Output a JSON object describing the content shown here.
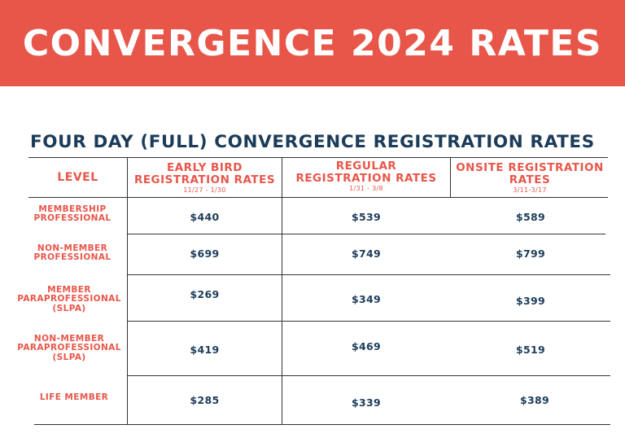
{
  "title": "CONVERGENCE 2024 RATES",
  "subtitle": "FOUR DAY (FULL) CONVERGENCE  REGISTRATION RATES",
  "colors": {
    "banner": "#e8564a",
    "accent_text": "#e8564a",
    "dark_text": "#1c3c5a"
  },
  "table": {
    "level_header": "LEVEL",
    "columns": [
      {
        "label": "EARLY BIRD\nREGISTRATION RATES",
        "dates": "11/27 - 1/30"
      },
      {
        "label": "REGULAR\nREGISTRATION RATES",
        "dates": "1/31 - 3/8"
      },
      {
        "label": "ONSITE REGISTRATION\nRATES",
        "dates": "3/11-3/17"
      }
    ],
    "rows": [
      {
        "level": "MEMBERSHIP\nPROFESSIONAL",
        "prices": [
          "$440",
          "$539",
          "$589"
        ]
      },
      {
        "level": "NON-MEMBER\nPROFESSIONAL",
        "prices": [
          "$699",
          "$749",
          "$799"
        ]
      },
      {
        "level": "MEMBER\nPARAPROFESSIONAL\n(SLPA)",
        "prices": [
          "$269",
          "$349",
          "$399"
        ]
      },
      {
        "level": "NON-MEMBER\nPARAPROFESSIONAL\n(SLPA)",
        "prices": [
          "$419",
          "$469",
          "$519"
        ]
      },
      {
        "level": "LIFE MEMBER",
        "prices": [
          "$285",
          "$339",
          "$389"
        ]
      }
    ]
  }
}
